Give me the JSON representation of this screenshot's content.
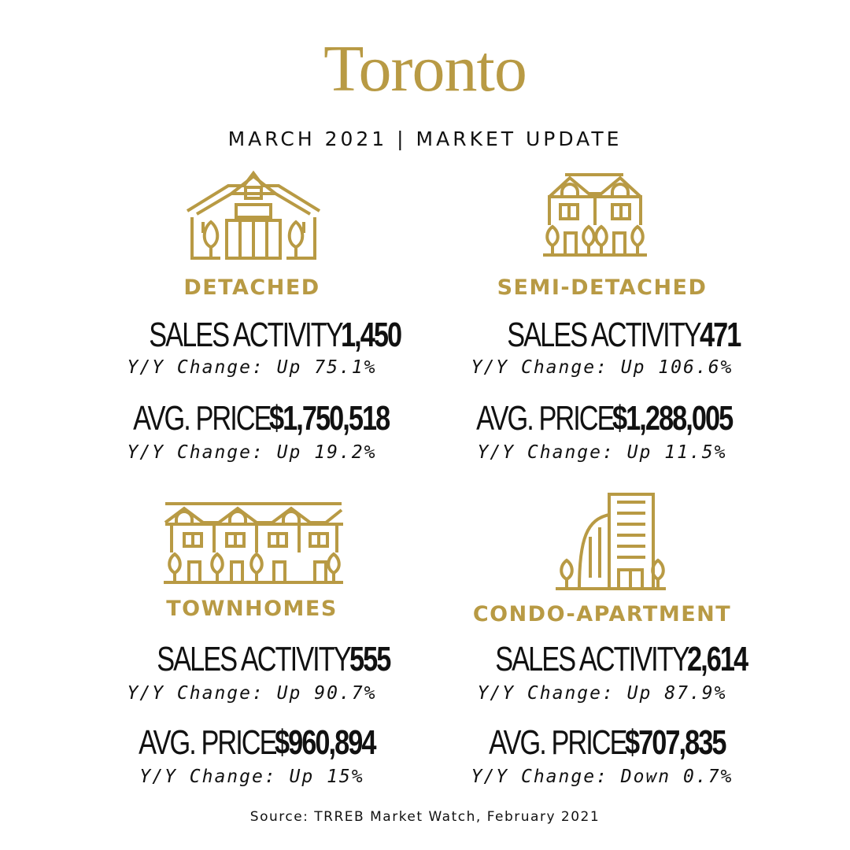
{
  "title": "Toronto",
  "subtitle": "MARCH 2021 | MARKET UPDATE",
  "accent_color": "#b89a44",
  "categories": [
    {
      "label": "DETACHED",
      "icon": "detached-house-icon",
      "sales_label": "SALES ACTIVITY",
      "sales_value": "1,450",
      "sales_change": "Y/Y Change: Up 75.1%",
      "price_label": "AVG. PRICE",
      "price_value": "$1,750,518",
      "price_change": "Y/Y Change: Up 19.2%"
    },
    {
      "label": "SEMI-DETACHED",
      "icon": "semi-detached-house-icon",
      "sales_label": "SALES ACTIVITY",
      "sales_value": "471",
      "sales_change": "Y/Y Change: Up 106.6%",
      "price_label": "AVG. PRICE",
      "price_value": "$1,288,005",
      "price_change": "Y/Y Change: Up 11.5%"
    },
    {
      "label": "TOWNHOMES",
      "icon": "townhomes-icon",
      "sales_label": "SALES ACTIVITY",
      "sales_value": "555",
      "sales_change": "Y/Y Change: Up 90.7%",
      "price_label": "AVG. PRICE",
      "price_value": "$960,894",
      "price_change": "Y/Y Change: Up 15%"
    },
    {
      "label": "CONDO-APARTMENT",
      "icon": "condo-apartment-icon",
      "sales_label": "SALES ACTIVITY",
      "sales_value": "2,614",
      "sales_change": "Y/Y Change: Up 87.9%",
      "price_label": "AVG. PRICE",
      "price_value": "$707,835",
      "price_change": "Y/Y Change: Down 0.7%"
    }
  ],
  "source": "Source: TRREB Market Watch, February 2021"
}
